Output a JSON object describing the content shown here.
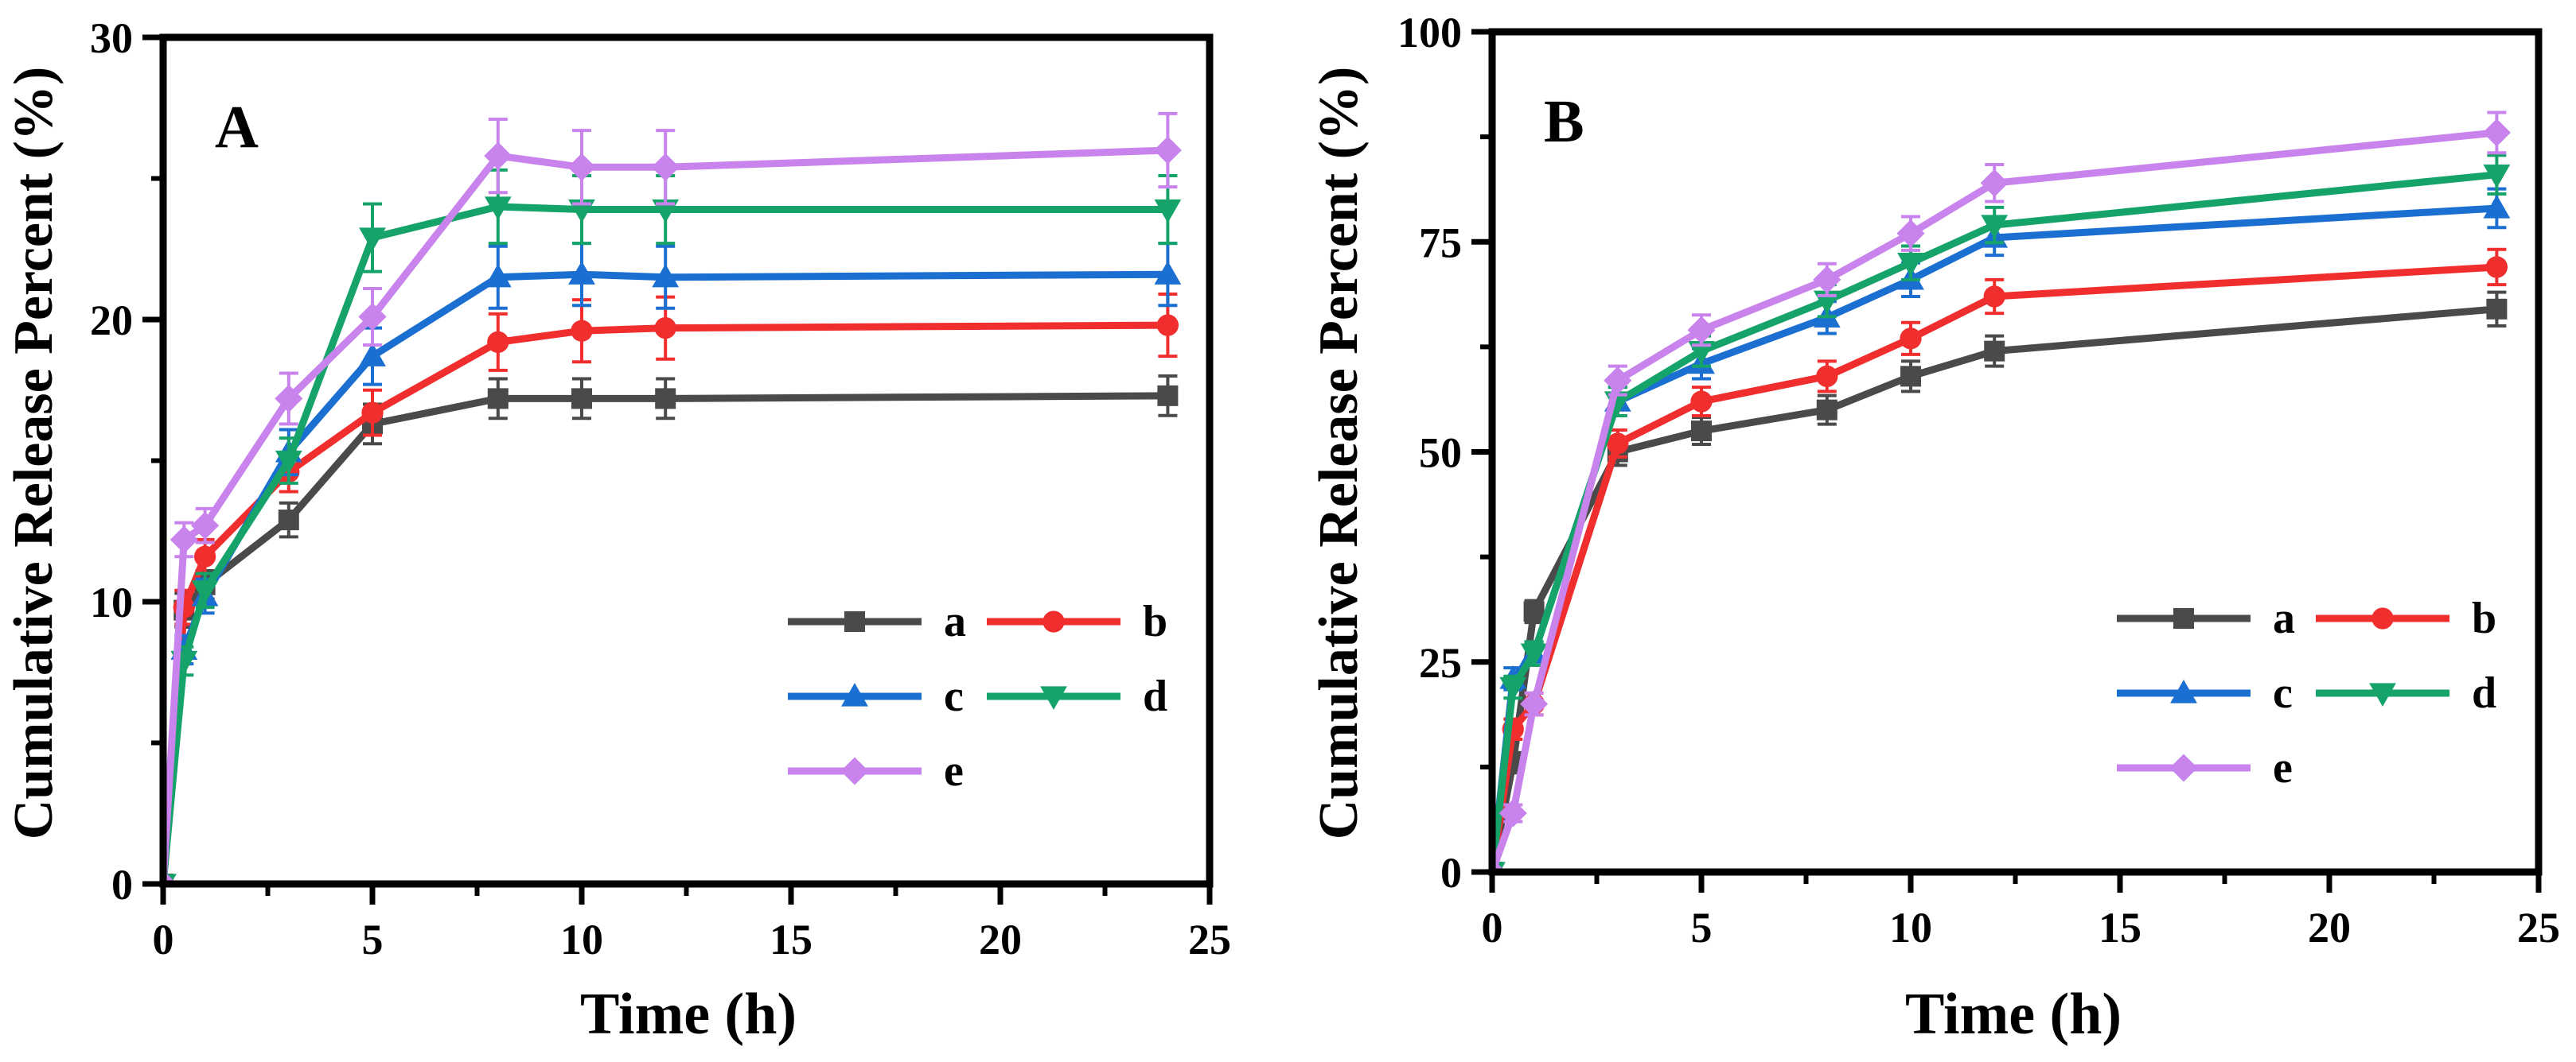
{
  "chart_data": [
    {
      "type": "line",
      "panel_label": "A",
      "xlabel": "Time (h)",
      "ylabel": "Cumulative Release Percent (%)",
      "xlim": [
        0,
        25
      ],
      "ylim": [
        0,
        30
      ],
      "xticks": [
        0,
        5,
        10,
        15,
        20,
        25
      ],
      "yticks": [
        0,
        10,
        20,
        30
      ],
      "x": [
        0,
        0.5,
        1,
        3,
        5,
        8,
        10,
        12,
        24
      ],
      "series": [
        {
          "name": "a",
          "color": "#4a4a4a",
          "marker": "square",
          "values": [
            0,
            9.7,
            10.6,
            12.9,
            16.3,
            17.2,
            17.2,
            17.2,
            17.3
          ],
          "errors": [
            0,
            0.6,
            0.5,
            0.6,
            0.7,
            0.7,
            0.7,
            0.7,
            0.7
          ]
        },
        {
          "name": "b",
          "color": "#f02e2e",
          "marker": "circle",
          "values": [
            0,
            9.8,
            11.6,
            14.6,
            16.7,
            19.2,
            19.6,
            19.7,
            19.8
          ],
          "errors": [
            0,
            0.6,
            0.6,
            0.7,
            0.8,
            1.0,
            1.1,
            1.1,
            1.1
          ]
        },
        {
          "name": "c",
          "color": "#1b6fd1",
          "marker": "triangle-up",
          "values": [
            0,
            8.3,
            10.2,
            15.3,
            18.7,
            21.5,
            21.6,
            21.5,
            21.6
          ],
          "errors": [
            0,
            0.5,
            0.6,
            0.8,
            1.0,
            1.1,
            1.1,
            1.1,
            1.1
          ]
        },
        {
          "name": "d",
          "color": "#16a36a",
          "marker": "triangle-down",
          "values": [
            0,
            7.9,
            10.4,
            15.0,
            22.9,
            24.0,
            23.9,
            23.9,
            23.9
          ],
          "errors": [
            0,
            0.5,
            0.6,
            0.8,
            1.2,
            1.3,
            1.2,
            1.2,
            1.2
          ]
        },
        {
          "name": "e",
          "color": "#c983ec",
          "marker": "diamond",
          "values": [
            0,
            12.2,
            12.7,
            17.2,
            20.1,
            25.8,
            25.4,
            25.4,
            26.0
          ],
          "errors": [
            0,
            0.6,
            0.6,
            0.9,
            1.0,
            1.3,
            1.3,
            1.3,
            1.3
          ]
        }
      ],
      "legend": {
        "placement": "lower-right",
        "columns": 2
      }
    },
    {
      "type": "line",
      "panel_label": "B",
      "xlabel": "Time (h)",
      "ylabel": "Cumulative Release Percent (%)",
      "xlim": [
        0,
        25
      ],
      "ylim": [
        0,
        100
      ],
      "xticks": [
        0,
        5,
        10,
        15,
        20,
        25
      ],
      "yticks": [
        0,
        25,
        50,
        75,
        100
      ],
      "x": [
        0,
        0.5,
        1,
        3,
        5,
        8,
        10,
        12,
        24
      ],
      "series": [
        {
          "name": "a",
          "color": "#4a4a4a",
          "marker": "square",
          "values": [
            0,
            13,
            31,
            50,
            52.5,
            55,
            59,
            62,
            67
          ],
          "errors": [
            0,
            1.2,
            1.3,
            1.6,
            1.6,
            1.7,
            1.8,
            1.8,
            2.0
          ]
        },
        {
          "name": "b",
          "color": "#f02e2e",
          "marker": "circle",
          "values": [
            0,
            17,
            20,
            51,
            56,
            59,
            63.5,
            68.5,
            72
          ],
          "errors": [
            0,
            1.2,
            1.3,
            1.6,
            1.7,
            1.8,
            1.9,
            2.0,
            2.1
          ]
        },
        {
          "name": "c",
          "color": "#1b6fd1",
          "marker": "triangle-up",
          "values": [
            0,
            23,
            26,
            56,
            60.5,
            66,
            70.5,
            75.5,
            79
          ],
          "errors": [
            0,
            1.3,
            1.4,
            1.7,
            1.8,
            1.9,
            2.0,
            2.1,
            2.3
          ]
        },
        {
          "name": "d",
          "color": "#16a36a",
          "marker": "triangle-down",
          "values": [
            0,
            22,
            26,
            56,
            62,
            68,
            72.5,
            77,
            83
          ],
          "errors": [
            0,
            1.3,
            1.4,
            1.7,
            1.8,
            1.9,
            2.0,
            2.1,
            2.3
          ]
        },
        {
          "name": "e",
          "color": "#c983ec",
          "marker": "diamond",
          "values": [
            0,
            7,
            20,
            58.5,
            64.5,
            70.5,
            76,
            82,
            88
          ],
          "errors": [
            0,
            1.0,
            1.3,
            1.7,
            1.8,
            1.9,
            2.0,
            2.2,
            2.4
          ]
        }
      ],
      "legend": {
        "placement": "lower-right",
        "columns": 2
      }
    }
  ]
}
